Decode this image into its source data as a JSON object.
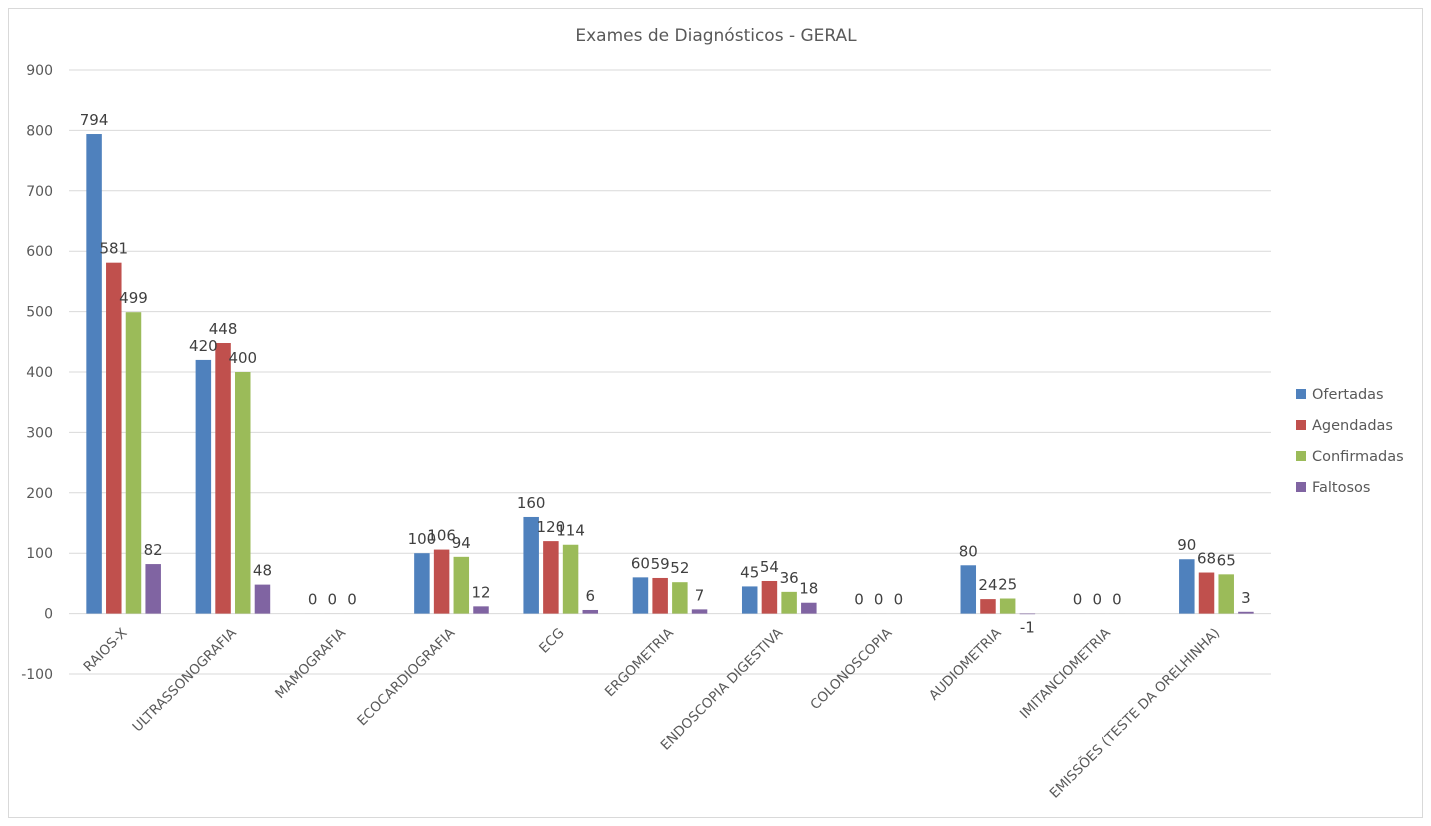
{
  "chart_data": {
    "type": "bar",
    "title": "Exames de Diagnósticos  - GERAL",
    "categories": [
      "RAIOS-X",
      "ULTRASSONOGRAFIA",
      "MAMOGRAFIA",
      "ECOCARDIOGRAFIA",
      "ECG",
      "ERGOMETRIA",
      "ENDOSCOPIA DIGESTIVA",
      "COLONOSCOPIA",
      "AUDIOMETRIA",
      "IMITANCIOMETRIA",
      "EMISSÕES (TESTE DA ORELHINHA)"
    ],
    "series": [
      {
        "name": "Ofertadas",
        "color": "#4f81bd",
        "values": [
          794,
          420,
          0,
          100,
          160,
          60,
          45,
          0,
          80,
          0,
          90
        ]
      },
      {
        "name": "Agendadas",
        "color": "#c0504d",
        "values": [
          581,
          448,
          0,
          106,
          120,
          59,
          54,
          0,
          24,
          0,
          68
        ]
      },
      {
        "name": "Confirmadas",
        "color": "#9bbb59",
        "values": [
          499,
          400,
          0,
          94,
          114,
          52,
          36,
          0,
          25,
          0,
          65
        ]
      },
      {
        "name": "Faltosos",
        "color": "#8064a2",
        "values": [
          82,
          48,
          null,
          12,
          6,
          7,
          18,
          null,
          -1,
          null,
          3
        ]
      }
    ],
    "ylim": [
      -100,
      900
    ],
    "yticks": [
      -100,
      0,
      100,
      200,
      300,
      400,
      500,
      600,
      700,
      800,
      900
    ],
    "grid": true,
    "legend_position": "right"
  }
}
